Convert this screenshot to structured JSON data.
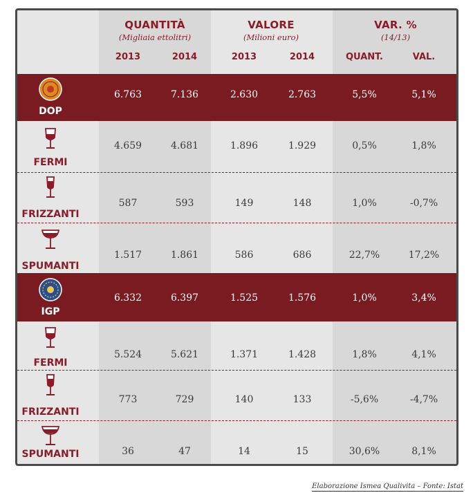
{
  "header": {
    "quantita": {
      "title": "QUANTITÀ",
      "subtitle": "(Migliaia ettolitri)"
    },
    "valore": {
      "title": "VALORE",
      "subtitle": "(Milioni euro)"
    },
    "var": {
      "title": "VAR. %",
      "subtitle": "(14/13)"
    },
    "years": [
      "2013",
      "2014",
      "2013",
      "2014"
    ],
    "var_cols": [
      "QUANT.",
      "VAL."
    ]
  },
  "rows": [
    {
      "label": "DOP",
      "icon": "dop-seal-icon",
      "values": [
        "6.763",
        "7.136",
        "2.630",
        "2.763",
        "5,5%",
        "5,1%"
      ]
    },
    {
      "label": "FERMI",
      "icon": "still-wine-glass-icon",
      "values": [
        "4.659",
        "4.681",
        "1.896",
        "1.929",
        "0,5%",
        "1,8%"
      ]
    },
    {
      "label": "FRIZZANTI",
      "icon": "sparkling-wine-glass-icon",
      "values": [
        "587",
        "593",
        "149",
        "148",
        "1,0%",
        "-0,7%"
      ]
    },
    {
      "label": "SPUMANTI",
      "icon": "champagne-coupe-icon",
      "values": [
        "1.517",
        "1.861",
        "586",
        "686",
        "22,7%",
        "17,2%"
      ]
    },
    {
      "label": "IGP",
      "icon": "igp-seal-icon",
      "values": [
        "6.332",
        "6.397",
        "1.525",
        "1.576",
        "1,0%",
        "3,4%"
      ]
    },
    {
      "label": "FERMI",
      "icon": "still-wine-glass-icon",
      "values": [
        "5.524",
        "5.621",
        "1.371",
        "1.428",
        "1,8%",
        "4,1%"
      ]
    },
    {
      "label": "FRIZZANTI",
      "icon": "sparkling-wine-glass-icon",
      "values": [
        "773",
        "729",
        "140",
        "133",
        "-5,6%",
        "-4,7%"
      ]
    },
    {
      "label": "SPUMANTI",
      "icon": "champagne-coupe-icon",
      "values": [
        "36",
        "47",
        "14",
        "15",
        "30,6%",
        "8,1%"
      ]
    }
  ],
  "footer": "Elaborazione Ismea Qualivita – Fonte: Istat",
  "colors": {
    "band": "#7a1b22",
    "accent": "#8a1c28",
    "dop_seal": "#e08a1e",
    "igp_seal": "#2a4f8c"
  }
}
